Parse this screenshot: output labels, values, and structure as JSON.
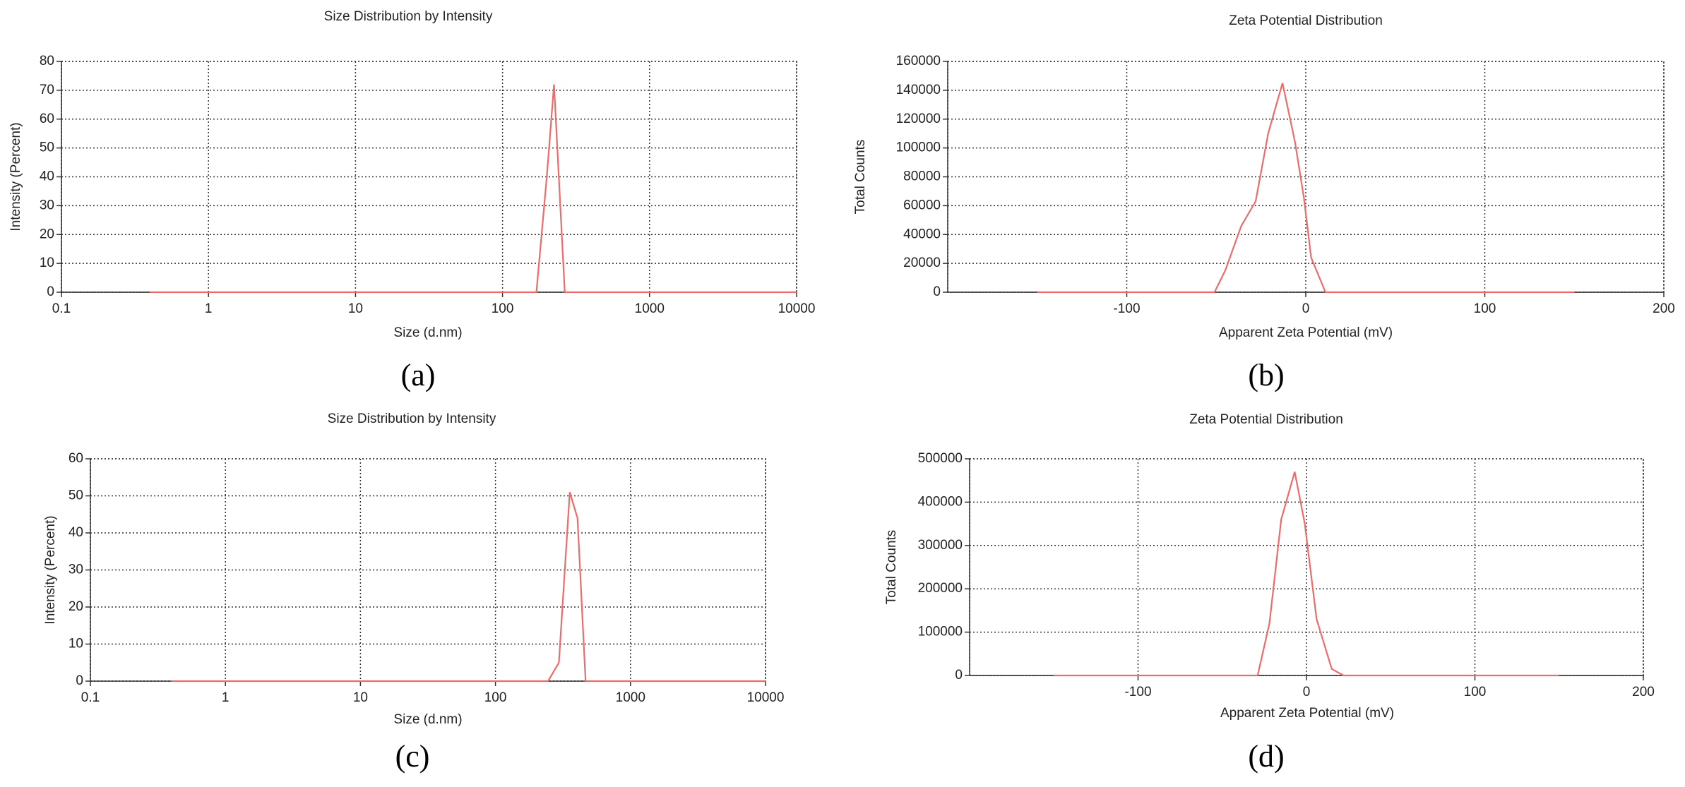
{
  "chart_data": [
    {
      "type": "line",
      "title": "Size Distribution by Intensity",
      "xlabel": "Size (d.nm)",
      "ylabel": "Intensity (Percent)",
      "label": "(a)",
      "xscale": "log",
      "grid": true,
      "color": "#f06a6a",
      "x": [
        0.4,
        170,
        200,
        224,
        265,
        10000
      ],
      "values": [
        0,
        0,
        40,
        72,
        0,
        0
      ],
      "xlim": [
        0.1,
        10000
      ],
      "xticks": [
        0.1,
        1,
        10,
        100,
        1000,
        10000
      ],
      "ylim": [
        0,
        80
      ],
      "yticks": [
        0,
        10,
        20,
        30,
        40,
        50,
        60,
        70,
        80
      ]
    },
    {
      "type": "line",
      "title": "Zeta Potential Distribution",
      "xlabel": "Apparent Zeta Potential (mV)",
      "ylabel": "Total Counts",
      "label": "(b)",
      "xscale": "linear",
      "grid": true,
      "color": "#f06a6a",
      "x": [
        -150,
        -51,
        -45,
        -36,
        -28,
        -21,
        -13,
        -6,
        -1,
        3,
        11,
        150
      ],
      "values": [
        0,
        0,
        15000,
        46000,
        63000,
        110000,
        145000,
        104000,
        65000,
        24000,
        0,
        0
      ],
      "xlim": [
        -200,
        200
      ],
      "xticks": [
        -100,
        0,
        100,
        200
      ],
      "ylim": [
        0,
        160000
      ],
      "yticks": [
        0,
        20000,
        40000,
        60000,
        80000,
        100000,
        120000,
        140000,
        160000
      ]
    },
    {
      "type": "line",
      "title": "Size Distribution by Intensity",
      "xlabel": "Size (d.nm)",
      "ylabel": "Intensity (Percent)",
      "label": "(c)",
      "xscale": "log",
      "grid": true,
      "color": "#f06a6a",
      "x": [
        0.4,
        245,
        295,
        355,
        405,
        465,
        10000
      ],
      "values": [
        0,
        0,
        5,
        51,
        44,
        0,
        0
      ],
      "xlim": [
        0.1,
        10000
      ],
      "xticks": [
        0.1,
        1,
        10,
        100,
        1000,
        10000
      ],
      "ylim": [
        0,
        60
      ],
      "yticks": [
        0,
        10,
        20,
        30,
        40,
        50,
        60
      ]
    },
    {
      "type": "line",
      "title": "Zeta Potential Distribution",
      "xlabel": "Apparent Zeta Potential (mV)",
      "ylabel": "Total Counts",
      "label": "(d)",
      "xscale": "linear",
      "grid": true,
      "color": "#f06a6a",
      "x": [
        -150,
        -29,
        -22,
        -15,
        -7,
        -1,
        6,
        15,
        22,
        150
      ],
      "values": [
        0,
        0,
        120000,
        360000,
        470000,
        350000,
        130000,
        15000,
        0,
        0
      ],
      "xlim": [
        -200,
        200
      ],
      "xticks": [
        -100,
        0,
        100,
        200
      ],
      "ylim": [
        0,
        500000
      ],
      "yticks": [
        0,
        100000,
        200000,
        300000,
        400000,
        500000
      ]
    }
  ]
}
